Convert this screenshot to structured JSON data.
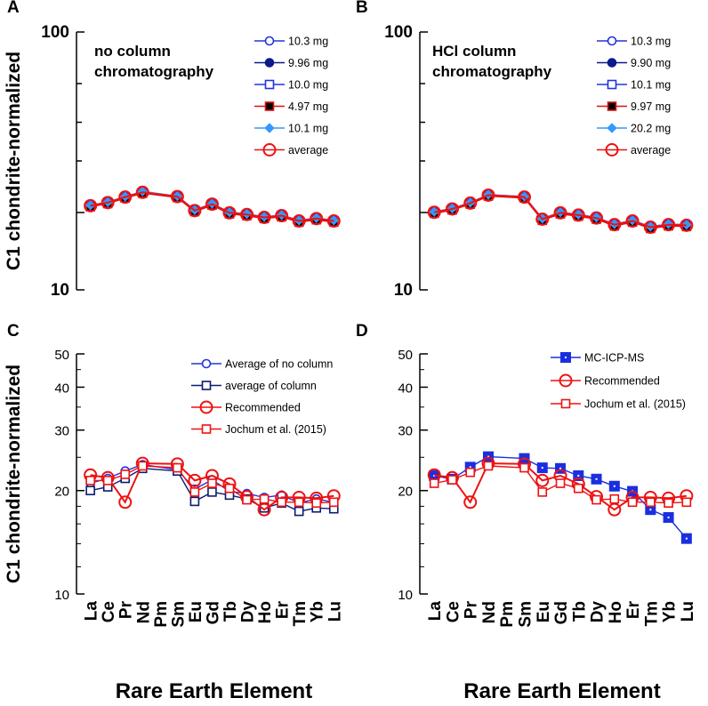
{
  "chart_data": [
    {
      "panel": "A",
      "type": "line",
      "yscale": "log",
      "ylim": [
        10,
        100
      ],
      "yticks": [
        "100",
        "10"
      ],
      "ylabel": "C1 chondrite-normalized",
      "note_lines": [
        "no column",
        "chromatography"
      ],
      "categories": [
        "La",
        "Ce",
        "Pr",
        "Nd",
        "Pm",
        "Sm",
        "Eu",
        "Gd",
        "Tb",
        "Dy",
        "Ho",
        "Er",
        "Tm",
        "Yb",
        "Lu"
      ],
      "series": [
        {
          "name": "10.3 mg",
          "color": "#2233dd",
          "marker": "circle",
          "fill": "none",
          "values": [
            21.3,
            21.9,
            23.0,
            24.0,
            null,
            23.1,
            20.4,
            21.6,
            20.0,
            19.7,
            19.2,
            19.5,
            18.6,
            19.0,
            18.6
          ]
        },
        {
          "name": "9.96 mg",
          "color": "#0b1a8c",
          "marker": "circle",
          "fill": "#0b1a8c",
          "values": [
            21.1,
            21.7,
            22.8,
            23.8,
            null,
            22.9,
            20.2,
            21.4,
            19.8,
            19.5,
            19.0,
            19.3,
            18.4,
            18.8,
            18.4
          ]
        },
        {
          "name": "10.0 mg",
          "color": "#2233dd",
          "marker": "square",
          "fill": "none",
          "values": [
            21.2,
            21.8,
            22.9,
            23.9,
            null,
            23.0,
            20.3,
            21.5,
            19.9,
            19.6,
            19.1,
            19.4,
            18.5,
            18.9,
            18.5
          ]
        },
        {
          "name": "4.97 mg",
          "color": "#dd1111",
          "marker": "square",
          "fill": "#000000",
          "values": [
            21.0,
            21.6,
            22.7,
            23.7,
            null,
            22.8,
            20.1,
            21.3,
            19.7,
            19.4,
            18.9,
            19.2,
            18.3,
            18.7,
            18.3
          ]
        },
        {
          "name": "10.1 mg",
          "color": "#3399ff",
          "marker": "diamond",
          "fill": "#3399ff",
          "values": [
            21.3,
            21.9,
            23.0,
            24.1,
            null,
            23.1,
            20.4,
            21.6,
            20.0,
            19.7,
            19.2,
            19.5,
            18.6,
            19.0,
            18.6
          ]
        },
        {
          "name": "average",
          "color": "#ee1111",
          "marker": "bigcircle",
          "fill": "none",
          "values": [
            21.2,
            21.8,
            22.9,
            23.9,
            null,
            23.0,
            20.3,
            21.5,
            19.9,
            19.6,
            19.1,
            19.4,
            18.5,
            18.9,
            18.5
          ]
        }
      ]
    },
    {
      "panel": "B",
      "type": "line",
      "yscale": "log",
      "ylim": [
        10,
        100
      ],
      "yticks": [
        "100",
        "10"
      ],
      "ylabel": "",
      "note_lines": [
        "HCl column",
        "chromatography"
      ],
      "categories": [
        "La",
        "Ce",
        "Pr",
        "Nd",
        "Pm",
        "Sm",
        "Eu",
        "Gd",
        "Tb",
        "Dy",
        "Ho",
        "Er",
        "Tm",
        "Yb",
        "Lu"
      ],
      "series": [
        {
          "name": "10.3 mg",
          "color": "#2233dd",
          "marker": "circle",
          "fill": "none",
          "values": [
            20.1,
            20.7,
            21.8,
            23.4,
            null,
            23.0,
            18.9,
            20.0,
            19.6,
            19.1,
            18.0,
            18.6,
            17.6,
            18.0,
            17.9
          ]
        },
        {
          "name": "9.90 mg",
          "color": "#0b1a8c",
          "marker": "circle",
          "fill": "#0b1a8c",
          "values": [
            19.9,
            20.5,
            21.6,
            23.2,
            null,
            22.8,
            18.7,
            19.8,
            19.4,
            18.9,
            17.8,
            18.4,
            17.4,
            17.8,
            17.7
          ]
        },
        {
          "name": "10.1 mg",
          "color": "#2233dd",
          "marker": "square",
          "fill": "none",
          "values": [
            20.0,
            20.6,
            21.7,
            23.3,
            null,
            22.9,
            18.8,
            19.9,
            19.5,
            19.0,
            17.9,
            18.5,
            17.5,
            17.9,
            17.8
          ]
        },
        {
          "name": "9.97 mg",
          "color": "#dd1111",
          "marker": "square",
          "fill": "#000000",
          "values": [
            19.8,
            20.4,
            21.5,
            23.1,
            null,
            22.7,
            18.6,
            19.7,
            19.3,
            18.8,
            17.7,
            18.3,
            17.3,
            17.7,
            17.6
          ]
        },
        {
          "name": "20.2 mg",
          "color": "#3399ff",
          "marker": "diamond",
          "fill": "#3399ff",
          "values": [
            20.1,
            20.7,
            21.8,
            23.4,
            null,
            23.0,
            18.9,
            20.0,
            19.6,
            19.1,
            18.0,
            18.6,
            17.6,
            18.0,
            17.9
          ]
        },
        {
          "name": "average",
          "color": "#ee1111",
          "marker": "bigcircle",
          "fill": "none",
          "values": [
            20.0,
            20.6,
            21.7,
            23.3,
            null,
            22.9,
            18.8,
            19.9,
            19.5,
            19.0,
            17.9,
            18.5,
            17.5,
            17.9,
            17.8
          ]
        }
      ]
    },
    {
      "panel": "C",
      "type": "line",
      "yscale": "log",
      "ylim": [
        10,
        50
      ],
      "yticks": [
        "50",
        "40",
        "30",
        "20",
        "10"
      ],
      "ylabel": "C1 chondrite-normalized",
      "xlabel": "Rare Earth Element",
      "categories": [
        "La",
        "Ce",
        "Pr",
        "Nd",
        "Pm",
        "Sm",
        "Eu",
        "Gd",
        "Tb",
        "Dy",
        "Ho",
        "Er",
        "Tm",
        "Yb",
        "Lu"
      ],
      "series": [
        {
          "name": "Average of no column",
          "color": "#2233dd",
          "marker": "circle",
          "fill": "none",
          "values": [
            21.0,
            21.7,
            22.8,
            23.8,
            null,
            23.0,
            20.2,
            21.5,
            19.9,
            19.6,
            19.1,
            19.4,
            18.4,
            18.9,
            18.5
          ]
        },
        {
          "name": "average of column",
          "color": "#0d1a70",
          "marker": "square",
          "fill": "none",
          "values": [
            20.0,
            20.5,
            21.7,
            23.2,
            null,
            22.8,
            18.6,
            19.8,
            19.4,
            18.9,
            17.8,
            18.4,
            17.4,
            17.8,
            17.7
          ]
        },
        {
          "name": "Recommended",
          "color": "#ee1111",
          "marker": "bigcircle",
          "fill": "none",
          "values": [
            22.2,
            21.8,
            18.5,
            24.0,
            null,
            23.9,
            21.4,
            22.1,
            20.9,
            19.2,
            17.6,
            19.1,
            19.1,
            19.0,
            19.3
          ]
        },
        {
          "name": "Jochum et al. (2015)",
          "color": "#ee1111",
          "marker": "square",
          "fill": "none",
          "values": [
            21.4,
            21.4,
            22.3,
            23.6,
            null,
            23.3,
            19.8,
            21.0,
            20.3,
            18.8,
            18.9,
            18.5,
            18.5,
            18.4,
            18.5
          ]
        }
      ]
    },
    {
      "panel": "D",
      "type": "line",
      "yscale": "log",
      "ylim": [
        10,
        50
      ],
      "yticks": [
        "50",
        "40",
        "30",
        "20",
        "10"
      ],
      "ylabel": "",
      "xlabel": "Rare Earth Element",
      "categories": [
        "La",
        "Ce",
        "Pr",
        "Nd",
        "Pm",
        "Sm",
        "Eu",
        "Gd",
        "Tb",
        "Dy",
        "Ho",
        "Er",
        "Tm",
        "Yb",
        "Lu"
      ],
      "series": [
        {
          "name": "MC-ICP-MS",
          "color": "#1a2fe0",
          "marker": "bigsquare",
          "fill": "#1a2fe0",
          "values": [
            22.1,
            21.6,
            23.4,
            25.1,
            null,
            24.8,
            23.3,
            23.2,
            22.1,
            21.6,
            20.6,
            19.9,
            17.6,
            16.7,
            14.5
          ]
        },
        {
          "name": "Recommended",
          "color": "#ee1111",
          "marker": "bigcircle",
          "fill": "none",
          "values": [
            22.2,
            21.8,
            18.5,
            24.0,
            null,
            23.9,
            21.4,
            22.1,
            20.9,
            19.2,
            17.6,
            19.1,
            19.1,
            19.0,
            19.3
          ]
        },
        {
          "name": "Jochum et al. (2015)",
          "color": "#ee1111",
          "marker": "square",
          "fill": "none",
          "values": [
            21.0,
            21.5,
            22.6,
            23.6,
            null,
            23.3,
            19.8,
            21.0,
            20.3,
            18.8,
            18.9,
            18.5,
            18.5,
            18.4,
            18.5
          ]
        }
      ]
    }
  ]
}
